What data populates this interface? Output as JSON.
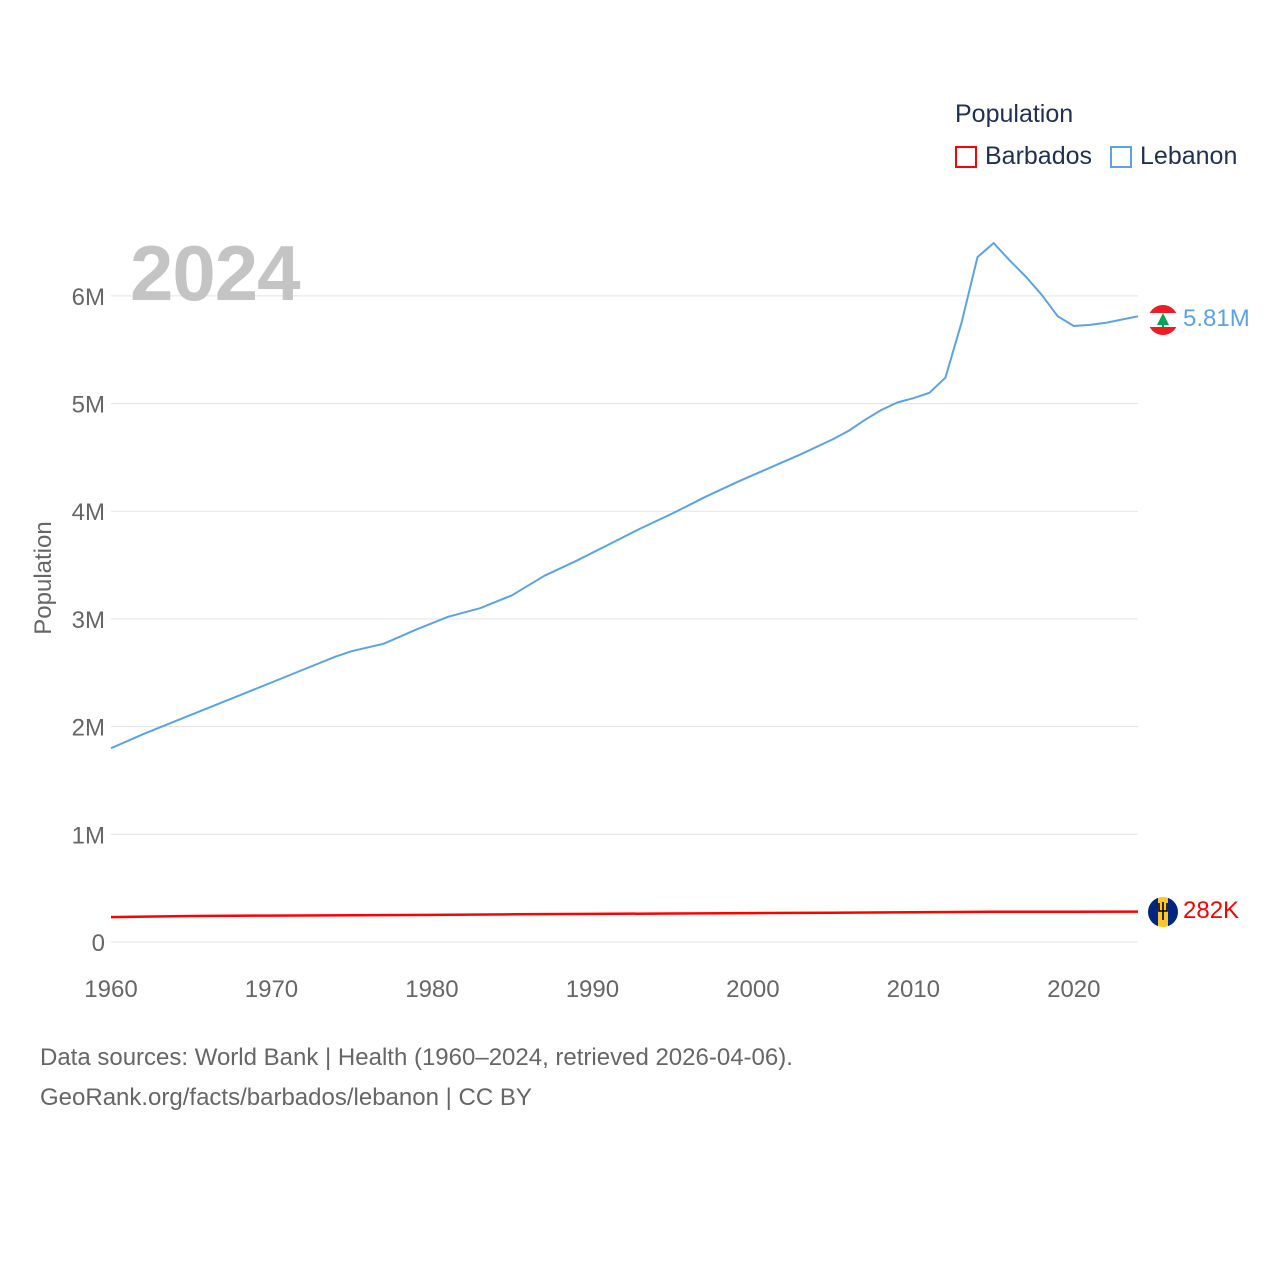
{
  "legend": {
    "title": "Population",
    "items": [
      {
        "label": "Barbados",
        "color": "#ff0000"
      },
      {
        "label": "Lebanon",
        "color": "#5ba3e6"
      }
    ]
  },
  "watermark_year": "2024",
  "footer": {
    "line1": "Data sources: World Bank | Health (1960–2024, retrieved 2026-04-06).",
    "line2": "GeoRank.org/facts/barbados/lebanon | CC BY"
  },
  "chart_data": {
    "type": "line",
    "title": "Population",
    "xlabel": "",
    "ylabel": "Population",
    "xlim": [
      1960,
      2024
    ],
    "ylim": [
      0,
      6500000
    ],
    "x_ticks": [
      1960,
      1970,
      1980,
      1990,
      2000,
      2010,
      2020
    ],
    "y_ticks": [
      {
        "value": 0,
        "label": "0"
      },
      {
        "value": 1000000,
        "label": "1M"
      },
      {
        "value": 2000000,
        "label": "2M"
      },
      {
        "value": 3000000,
        "label": "3M"
      },
      {
        "value": 4000000,
        "label": "4M"
      },
      {
        "value": 5000000,
        "label": "5M"
      },
      {
        "value": 6000000,
        "label": "6M"
      }
    ],
    "grid": true,
    "series": [
      {
        "name": "Lebanon",
        "color": "#5ba3e6",
        "end_label": "5.81M",
        "flag": "lebanon-flag",
        "x": [
          1960,
          1962,
          1964,
          1966,
          1968,
          1970,
          1972,
          1974,
          1975,
          1977,
          1979,
          1981,
          1983,
          1984,
          1985,
          1987,
          1989,
          1991,
          1993,
          1995,
          1997,
          1999,
          2001,
          2003,
          2005,
          2006,
          2007,
          2008,
          2009,
          2010,
          2011,
          2012,
          2013,
          2014,
          2015,
          2016,
          2017,
          2018,
          2019,
          2020,
          2021,
          2022,
          2023,
          2024
        ],
        "values": [
          1800000,
          1930000,
          2050000,
          2170000,
          2290000,
          2410000,
          2530000,
          2650000,
          2700000,
          2770000,
          2900000,
          3020000,
          3100000,
          3160000,
          3220000,
          3400000,
          3540000,
          3690000,
          3840000,
          3980000,
          4130000,
          4270000,
          4400000,
          4530000,
          4670000,
          4750000,
          4850000,
          4940000,
          5010000,
          5050000,
          5100000,
          5240000,
          5750000,
          6360000,
          6490000,
          6330000,
          6180000,
          6010000,
          5810000,
          5720000,
          5730000,
          5750000,
          5780000,
          5810000
        ]
      },
      {
        "name": "Barbados",
        "color": "#ff0000",
        "end_label": "282K",
        "flag": "barbados-flag",
        "x": [
          1960,
          1965,
          1970,
          1975,
          1980,
          1985,
          1990,
          1995,
          2000,
          2005,
          2010,
          2015,
          2020,
          2024
        ],
        "values": [
          231000,
          241000,
          245000,
          249000,
          252000,
          257000,
          261000,
          265000,
          268000,
          272000,
          277000,
          280000,
          281000,
          282000
        ]
      }
    ]
  }
}
